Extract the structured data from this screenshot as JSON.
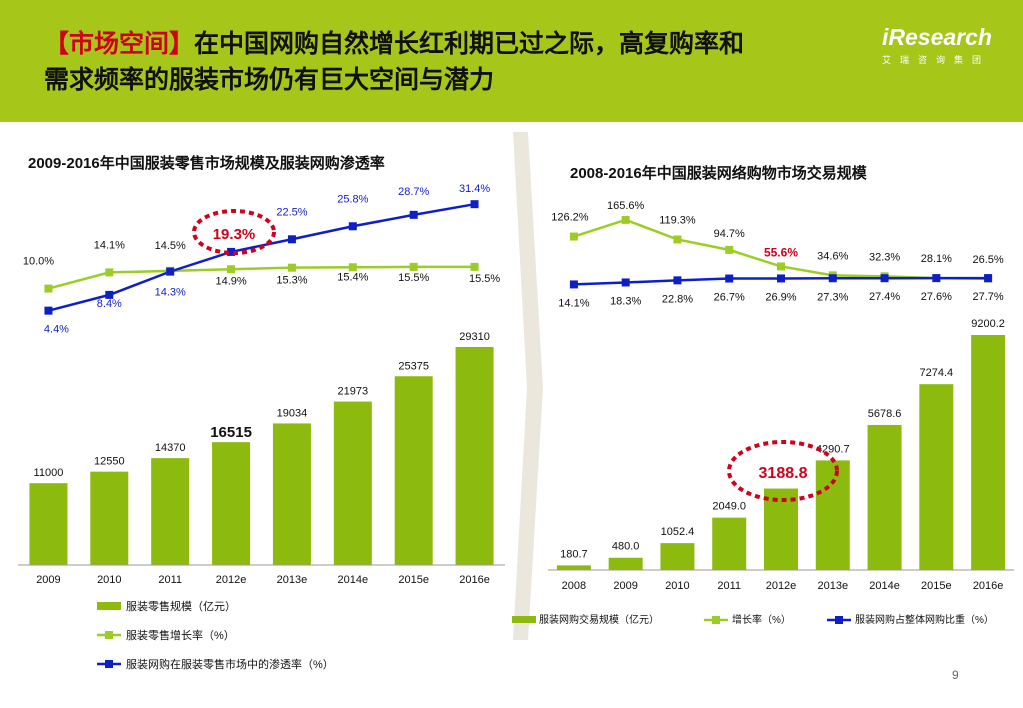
{
  "header": {
    "bracket_title": "【市场空间】",
    "title_line1": "在中国网购自然增长红利期已过之际，高复购率和",
    "title_line2": "需求频率的服装市场仍有巨大空间与潜力",
    "logo_text": "iResearch",
    "logo_sub": "艾瑞咨询集团"
  },
  "page_number": "9",
  "colors": {
    "green": "#8cba0e",
    "line_green": "#9ccc25",
    "blue": "#0f1fc7",
    "red": "#d0021b",
    "header": "#a6c719"
  },
  "chart_data": [
    {
      "type": "bar",
      "title": "2009-2016年中国服装零售市场规模及服装网购渗透率",
      "categories": [
        "2009",
        "2010",
        "2011",
        "2012e",
        "2013e",
        "2014e",
        "2015e",
        "2016e"
      ],
      "series": [
        {
          "name": "服装零售规模（亿元）",
          "type": "bar",
          "values": [
            11000,
            12550,
            14370,
            16515,
            19034,
            21973,
            25375,
            29310
          ]
        },
        {
          "name": "服装零售增长率（%）",
          "type": "line",
          "values": [
            10.0,
            14.1,
            14.5,
            14.9,
            15.3,
            15.4,
            15.5,
            15.5
          ]
        },
        {
          "name": "服装网购在服装零售市场中的渗透率（%）",
          "type": "line",
          "values": [
            4.4,
            8.4,
            14.3,
            19.3,
            22.5,
            25.8,
            28.7,
            31.4
          ]
        }
      ],
      "value_labels": {
        "bars": [
          "11000",
          "12550",
          "14370",
          "16515",
          "19034",
          "21973",
          "25375",
          "29310"
        ],
        "growth": [
          "10.0%",
          "14.1%",
          "14.5%",
          "14.9%",
          "15.3%",
          "15.4%",
          "15.5%",
          "15.5%"
        ],
        "penetration": [
          "4.4%",
          "8.4%",
          "14.3%",
          "19.3%",
          "22.5%",
          "25.8%",
          "28.7%",
          "31.4%"
        ]
      },
      "highlights": [
        "19.3%",
        "16515"
      ],
      "legend": [
        "服装零售规模（亿元）",
        "服装零售增长率（%）",
        "服装网购在服装零售市场中的渗透率（%）"
      ],
      "legend_position": "bottom"
    },
    {
      "type": "bar",
      "title": "2008-2016年中国服装网络购物市场交易规模",
      "categories": [
        "2008",
        "2009",
        "2010",
        "2011",
        "2012e",
        "2013e",
        "2014e",
        "2015e",
        "2016e"
      ],
      "series": [
        {
          "name": "服装网购交易规模（亿元）",
          "type": "bar",
          "values": [
            180.7,
            480.0,
            1052.4,
            2049.0,
            3188.8,
            4290.7,
            5678.6,
            7274.4,
            9200.2
          ]
        },
        {
          "name": "增长率（%）",
          "type": "line",
          "values": [
            126.2,
            165.6,
            119.3,
            94.7,
            55.6,
            34.6,
            32.3,
            28.1,
            26.5
          ]
        },
        {
          "name": "服装网购占整体网购比重（%）",
          "type": "line",
          "values": [
            14.1,
            18.3,
            22.8,
            26.7,
            26.9,
            27.3,
            27.4,
            27.6,
            27.7
          ]
        }
      ],
      "value_labels": {
        "bars": [
          "180.7",
          "480.0",
          "1052.4",
          "2049.0",
          "3188.8",
          "4290.7",
          "5678.6",
          "7274.4",
          "9200.2"
        ],
        "growth": [
          "126.2%",
          "165.6%",
          "119.3%",
          "94.7%",
          "55.6%",
          "34.6%",
          "32.3%",
          "28.1%",
          "26.5%"
        ],
        "share": [
          "14.1%",
          "18.3%",
          "22.8%",
          "26.7%",
          "26.9%",
          "27.3%",
          "27.4%",
          "27.6%",
          "27.7%"
        ]
      },
      "highlights": [
        "3188.8",
        "55.6%"
      ],
      "legend": [
        "服装网购交易规模（亿元）",
        "增长率（%）",
        "服装网购占整体网购比重（%）"
      ],
      "legend_position": "bottom"
    }
  ]
}
